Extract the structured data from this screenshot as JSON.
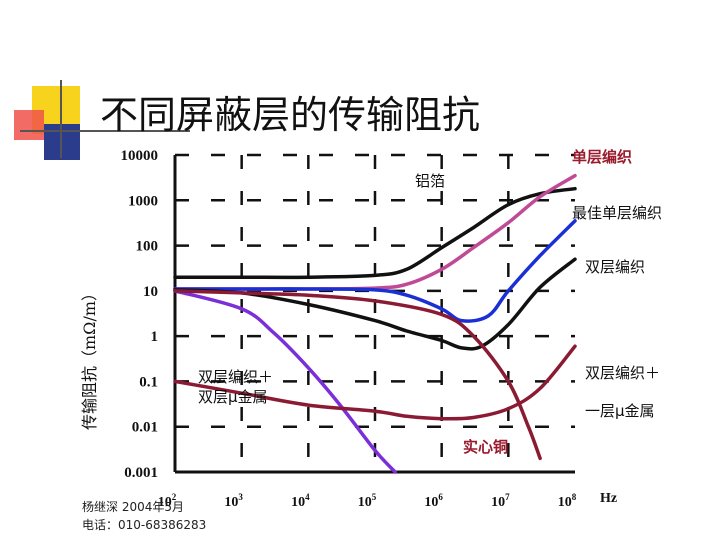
{
  "title": "不同屏蔽层的传输阻抗",
  "footer": {
    "author_date": "杨继深 2004年5月",
    "phone": "电话：010-68386283"
  },
  "colors": {
    "accent_yellow": "#f7d31e",
    "accent_red": "#f0524a",
    "accent_blue": "#2b3c8c",
    "curve_black": "#111111",
    "curve_magenta": "#c04a96",
    "curve_blue": "#1a2fd6",
    "curve_maroon": "#8a1b33",
    "curve_purple": "#7a2fd8",
    "label_red": "#9b1b2e"
  },
  "chart_data": {
    "type": "line",
    "title": "不同屏蔽层的传输阻抗",
    "xlabel": "Hz",
    "ylabel": "传输阻抗（mΩ/m）",
    "x_scale": "log",
    "y_scale": "log",
    "xlim": [
      100,
      100000000
    ],
    "ylim": [
      0.001,
      10000
    ],
    "grid": true,
    "grid_style": "dashed",
    "y_tick_labels": [
      "10000",
      "1000",
      "100",
      "10",
      "1",
      "0.1",
      "0.01",
      "0.001"
    ],
    "y_tick_values": [
      10000,
      1000,
      100,
      10,
      1,
      0.1,
      0.01,
      0.001
    ],
    "x_tick_values": [
      100,
      1000,
      10000,
      100000,
      1000000,
      10000000,
      100000000
    ],
    "x_tick_labels": [
      {
        "base": "10",
        "exp": "2"
      },
      {
        "base": "10",
        "exp": "3"
      },
      {
        "base": "10",
        "exp": "4"
      },
      {
        "base": "10",
        "exp": "5"
      },
      {
        "base": "10",
        "exp": "6"
      },
      {
        "base": "10",
        "exp": "7"
      },
      {
        "base": "10",
        "exp": "8"
      }
    ],
    "series": [
      {
        "name": "铝箔",
        "color": "#111111",
        "x": [
          100,
          1000,
          10000,
          100000,
          300000,
          1000000,
          3000000,
          10000000,
          30000000,
          100000000
        ],
        "y": [
          20,
          20,
          20,
          22,
          30,
          90,
          250,
          800,
          1400,
          1800
        ]
      },
      {
        "name": "单层编织",
        "color": "#c04a96",
        "x": [
          100,
          1000,
          10000,
          100000,
          300000,
          1000000,
          3000000,
          10000000,
          30000000,
          100000000
        ],
        "y": [
          11,
          11,
          11,
          11.5,
          14,
          30,
          90,
          320,
          1200,
          3500
        ]
      },
      {
        "name": "最佳单层编织",
        "color": "#1a2fd6",
        "x": [
          100,
          1000,
          10000,
          100000,
          300000,
          1000000,
          2000000,
          5000000,
          10000000,
          30000000,
          100000000
        ],
        "y": [
          11,
          11,
          11,
          10.5,
          8,
          4,
          2.2,
          2.8,
          10,
          60,
          350
        ]
      },
      {
        "name": "双层编织",
        "color": "#111111",
        "x": [
          100,
          1000,
          10000,
          100000,
          300000,
          1000000,
          2000000,
          4000000,
          10000000,
          30000000,
          100000000
        ],
        "y": [
          10.5,
          9,
          5,
          2.2,
          1.3,
          0.8,
          0.55,
          0.6,
          1.8,
          12,
          50
        ]
      },
      {
        "name": "双层编织+双层μ金属",
        "color": "#7a2fd8",
        "x": [
          100,
          1000,
          3000,
          10000,
          30000,
          100000,
          200000
        ],
        "y": [
          10,
          4,
          1.2,
          0.2,
          0.03,
          0.003,
          0.001
        ]
      },
      {
        "name": "双层编织＋一层μ金属",
        "color": "#8a1b33",
        "x": [
          100,
          1000,
          10000,
          100000,
          300000,
          1000000,
          3000000,
          10000000,
          30000000,
          100000000
        ],
        "y": [
          0.1,
          0.055,
          0.03,
          0.022,
          0.017,
          0.015,
          0.016,
          0.025,
          0.07,
          0.6
        ]
      },
      {
        "name": "实心铜",
        "color": "#8a1b33",
        "x": [
          100,
          1000,
          10000,
          100000,
          1000000,
          3000000,
          10000000,
          20000000,
          30000000
        ],
        "y": [
          10,
          9,
          8,
          6,
          3,
          1,
          0.1,
          0.01,
          0.002
        ]
      }
    ],
    "annotations": [
      {
        "text": "单层编织",
        "style": "red"
      },
      {
        "text": "铝箔",
        "style": "black"
      },
      {
        "text": "最佳单层编织",
        "style": "black"
      },
      {
        "text": "双层编织",
        "style": "black"
      },
      {
        "text": "双层编织＋",
        "style": "black"
      },
      {
        "text": "双层μ金属",
        "style": "black"
      },
      {
        "text": "双层编织＋",
        "style": "black"
      },
      {
        "text": "一层μ金属",
        "style": "black"
      },
      {
        "text": "实心铜",
        "style": "red"
      }
    ]
  }
}
